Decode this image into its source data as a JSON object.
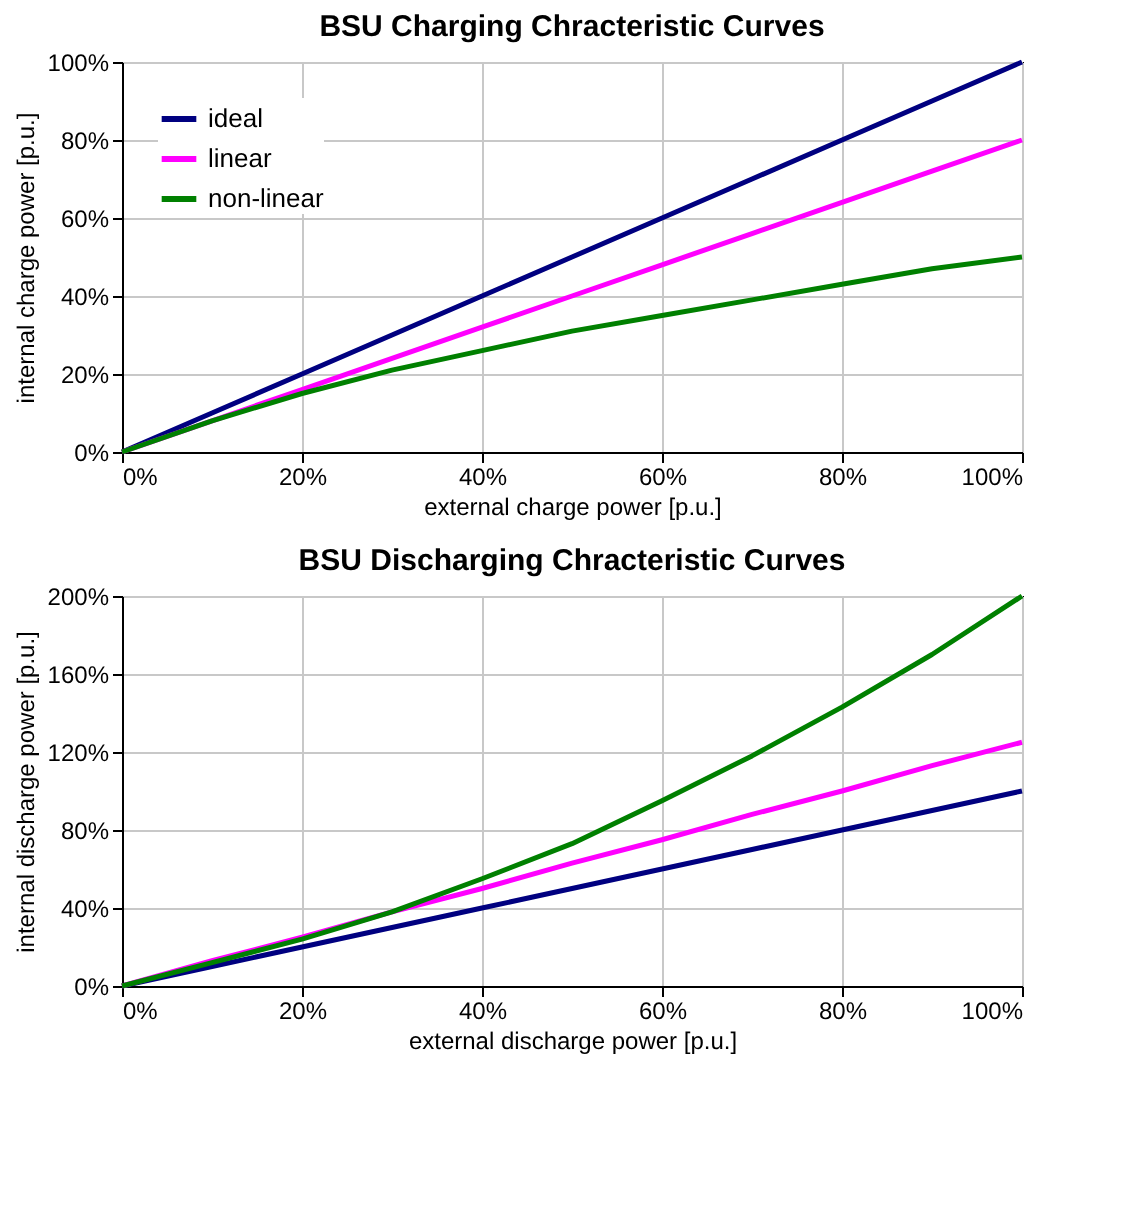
{
  "chart_data": [
    {
      "type": "line",
      "title": "BSU Charging Chracteristic Curves",
      "xlabel": "external charge power [p.u.]",
      "ylabel": "internal charge power [p.u.]",
      "x": [
        0,
        10,
        20,
        30,
        40,
        50,
        60,
        70,
        80,
        90,
        100
      ],
      "series": [
        {
          "name": "ideal",
          "color": "#000080",
          "values": [
            0,
            10,
            20,
            30,
            40,
            50,
            60,
            70,
            80,
            90,
            100
          ]
        },
        {
          "name": "linear",
          "color": "#ff00ff",
          "values": [
            0,
            8,
            16,
            24,
            32,
            40,
            48,
            56,
            64,
            72,
            80
          ]
        },
        {
          "name": "non-linear",
          "color": "#008000",
          "values": [
            0,
            8,
            15,
            21,
            26,
            31,
            35,
            39,
            43,
            47,
            50
          ]
        }
      ],
      "xlim": [
        0,
        100
      ],
      "xticks": [
        {
          "value": 0,
          "label": "0%"
        },
        {
          "value": 20,
          "label": "20%"
        },
        {
          "value": 40,
          "label": "40%"
        },
        {
          "value": 60,
          "label": "60%"
        },
        {
          "value": 80,
          "label": "80%"
        },
        {
          "value": 100,
          "label": "100%"
        }
      ],
      "ylim": [
        0,
        100
      ],
      "yticks": [
        {
          "value": 0,
          "label": "0%"
        },
        {
          "value": 20,
          "label": "20%"
        },
        {
          "value": 40,
          "label": "40%"
        },
        {
          "value": 60,
          "label": "60%"
        },
        {
          "value": 80,
          "label": "80%"
        },
        {
          "value": 100,
          "label": "100%"
        }
      ],
      "grid": true,
      "legend": "top left",
      "line_style": "solid",
      "marker": "none"
    },
    {
      "type": "line",
      "title": "BSU Discharging Chracteristic Curves",
      "xlabel": "external discharge power [p.u.]",
      "ylabel": "internal discharge power [p.u.]",
      "x": [
        0,
        10,
        20,
        30,
        40,
        50,
        60,
        70,
        80,
        90,
        100
      ],
      "series": [
        {
          "name": "ideal",
          "color": "#000080",
          "values": [
            0,
            10,
            20,
            30,
            40,
            50,
            60,
            70,
            80,
            90,
            100
          ]
        },
        {
          "name": "linear",
          "color": "#ff00ff",
          "values": [
            0,
            13,
            25,
            38,
            50,
            63,
            75,
            88,
            100,
            113,
            125
          ]
        },
        {
          "name": "non-linear",
          "color": "#008000",
          "values": [
            0,
            12,
            24,
            38,
            55,
            73,
            95,
            118,
            143,
            170,
            200
          ]
        }
      ],
      "xlim": [
        0,
        100
      ],
      "xticks": [
        {
          "value": 0,
          "label": "0%"
        },
        {
          "value": 20,
          "label": "20%"
        },
        {
          "value": 40,
          "label": "40%"
        },
        {
          "value": 60,
          "label": "60%"
        },
        {
          "value": 80,
          "label": "80%"
        },
        {
          "value": 100,
          "label": "100%"
        }
      ],
      "ylim": [
        0,
        200
      ],
      "yticks": [
        {
          "value": 0,
          "label": "0%"
        },
        {
          "value": 40,
          "label": "40%"
        },
        {
          "value": 80,
          "label": "80%"
        },
        {
          "value": 120,
          "label": "120%"
        },
        {
          "value": 160,
          "label": "160%"
        },
        {
          "value": 200,
          "label": "200%"
        }
      ],
      "grid": true,
      "legend": "top left",
      "line_style": "solid",
      "marker": "none"
    }
  ]
}
